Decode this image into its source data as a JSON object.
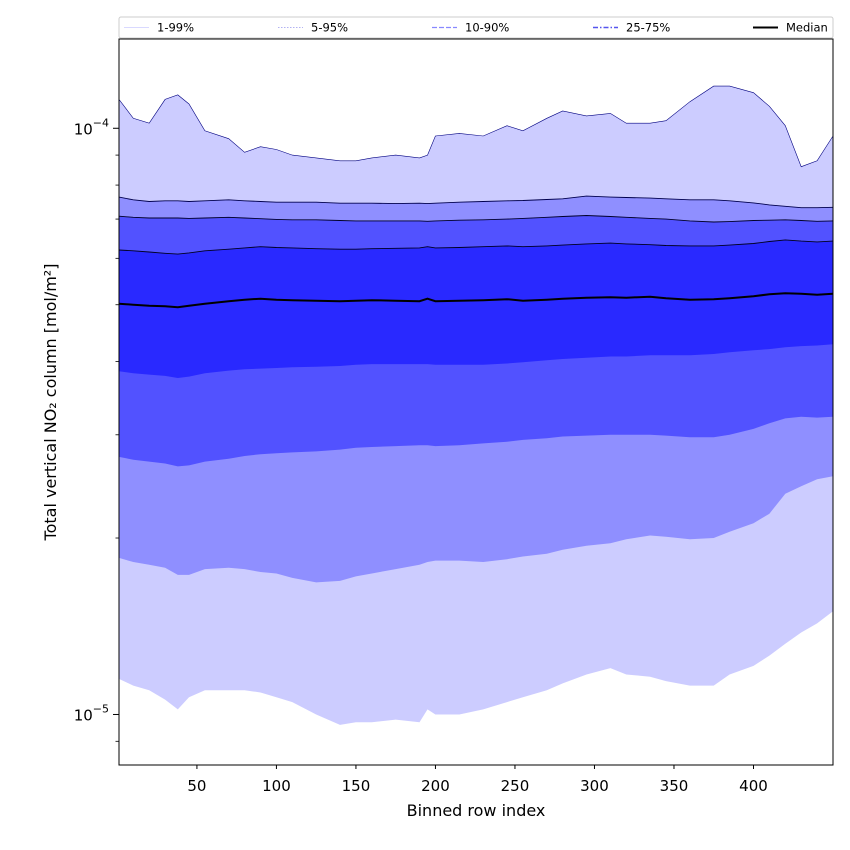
{
  "chart_data": {
    "type": "area",
    "xlabel": "Binned row index",
    "ylabel": "Total vertical NO₂ column [mol/m²]",
    "y_scale": "log",
    "xlim": [
      1,
      450
    ],
    "ylim": [
      8.2e-06,
      0.000142
    ],
    "x_ticks": [
      50,
      100,
      150,
      200,
      250,
      300,
      350,
      400
    ],
    "y_ticks": [
      {
        "value": 1e-05,
        "base": "10",
        "exponent": "−5"
      },
      {
        "value": 0.0001,
        "base": "10",
        "exponent": "−4"
      }
    ],
    "legend": {
      "placement": "top",
      "entries": [
        {
          "label": "1-99%",
          "color": "#ccccff",
          "style": "solid"
        },
        {
          "label": "5-95%",
          "color": "#9999ee",
          "style": "dotted"
        },
        {
          "label": "10-90%",
          "color": "#8888ff",
          "style": "dashed"
        },
        {
          "label": "25-75%",
          "color": "#5555ee",
          "style": "dashdot"
        },
        {
          "label": "Median",
          "color": "#000000",
          "style": "solid"
        }
      ]
    },
    "x": [
      1,
      10,
      20,
      30,
      38,
      45,
      55,
      70,
      80,
      90,
      100,
      110,
      125,
      140,
      150,
      160,
      175,
      190,
      195,
      200,
      215,
      230,
      245,
      255,
      270,
      280,
      295,
      310,
      320,
      335,
      345,
      360,
      375,
      385,
      400,
      410,
      420,
      430,
      440,
      450
    ],
    "bands": [
      {
        "name": "1-99%",
        "color": "#ccccff",
        "upper": [
          0.000112,
          0.000104,
          0.000102,
          0.000112,
          0.000114,
          0.00011,
          9.9e-05,
          9.6e-05,
          9.1e-05,
          9.3e-05,
          9.2e-05,
          9e-05,
          8.9e-05,
          8.8e-05,
          8.8e-05,
          8.9e-05,
          9e-05,
          8.9e-05,
          9e-05,
          9.7e-05,
          9.8e-05,
          9.7e-05,
          0.000101,
          9.9e-05,
          0.000104,
          0.000107,
          0.000105,
          0.000106,
          0.000102,
          0.000102,
          0.000103,
          0.000111,
          0.000118,
          0.000118,
          0.000115,
          0.000109,
          0.000101,
          8.6e-05,
          8.8e-05,
          9.7e-05
        ],
        "lower": [
          1.15e-05,
          1.12e-05,
          1.1e-05,
          1.06e-05,
          1.02e-05,
          1.07e-05,
          1.1e-05,
          1.1e-05,
          1.1e-05,
          1.09e-05,
          1.07e-05,
          1.05e-05,
          1e-05,
          9.6e-06,
          9.7e-06,
          9.7e-06,
          9.8e-06,
          9.7e-06,
          1.02e-05,
          1e-05,
          1e-05,
          1.02e-05,
          1.05e-05,
          1.07e-05,
          1.1e-05,
          1.13e-05,
          1.17e-05,
          1.2e-05,
          1.17e-05,
          1.16e-05,
          1.14e-05,
          1.12e-05,
          1.12e-05,
          1.17e-05,
          1.21e-05,
          1.26e-05,
          1.32e-05,
          1.38e-05,
          1.43e-05,
          1.5e-05
        ]
      },
      {
        "name": "5-95%",
        "color": "#8f8fff",
        "upper": [
          7.63e-05,
          7.55e-05,
          7.5e-05,
          7.52e-05,
          7.52e-05,
          7.5e-05,
          7.52e-05,
          7.55e-05,
          7.52e-05,
          7.5e-05,
          7.48e-05,
          7.48e-05,
          7.48e-05,
          7.45e-05,
          7.45e-05,
          7.45e-05,
          7.44e-05,
          7.45e-05,
          7.44e-05,
          7.45e-05,
          7.48e-05,
          7.5e-05,
          7.52e-05,
          7.53e-05,
          7.56e-05,
          7.58e-05,
          7.66e-05,
          7.63e-05,
          7.62e-05,
          7.6e-05,
          7.58e-05,
          7.55e-05,
          7.55e-05,
          7.52e-05,
          7.46e-05,
          7.4e-05,
          7.36e-05,
          7.32e-05,
          7.32e-05,
          7.33e-05
        ],
        "lower": [
          1.85e-05,
          1.82e-05,
          1.8e-05,
          1.78e-05,
          1.73e-05,
          1.73e-05,
          1.77e-05,
          1.78e-05,
          1.77e-05,
          1.75e-05,
          1.74e-05,
          1.71e-05,
          1.68e-05,
          1.69e-05,
          1.72e-05,
          1.74e-05,
          1.77e-05,
          1.8e-05,
          1.82e-05,
          1.83e-05,
          1.83e-05,
          1.82e-05,
          1.84e-05,
          1.86e-05,
          1.88e-05,
          1.91e-05,
          1.94e-05,
          1.96e-05,
          1.99e-05,
          2.02e-05,
          2.01e-05,
          1.99e-05,
          2e-05,
          2.05e-05,
          2.12e-05,
          2.2e-05,
          2.38e-05,
          2.45e-05,
          2.52e-05,
          2.55e-05
        ]
      },
      {
        "name": "10-90%",
        "color": "#5252ff",
        "upper": [
          7.08e-05,
          7.05e-05,
          7.03e-05,
          7.03e-05,
          7.03e-05,
          7.02e-05,
          7.03e-05,
          7.05e-05,
          7.03e-05,
          7.01e-05,
          6.99e-05,
          6.98e-05,
          6.98e-05,
          6.96e-05,
          6.95e-05,
          6.95e-05,
          6.95e-05,
          6.95e-05,
          6.94e-05,
          6.95e-05,
          6.97e-05,
          6.98e-05,
          7e-05,
          7.02e-05,
          7.05e-05,
          7.07e-05,
          7.1e-05,
          7.07e-05,
          7.05e-05,
          7.02e-05,
          7e-05,
          6.95e-05,
          6.92e-05,
          6.93e-05,
          6.96e-05,
          6.97e-05,
          6.98e-05,
          6.96e-05,
          6.94e-05,
          6.95e-05
        ],
        "lower": [
          2.75e-05,
          2.72e-05,
          2.7e-05,
          2.68e-05,
          2.65e-05,
          2.66e-05,
          2.7e-05,
          2.73e-05,
          2.76e-05,
          2.78e-05,
          2.79e-05,
          2.8e-05,
          2.81e-05,
          2.83e-05,
          2.85e-05,
          2.86e-05,
          2.87e-05,
          2.88e-05,
          2.88e-05,
          2.87e-05,
          2.88e-05,
          2.9e-05,
          2.92e-05,
          2.94e-05,
          2.96e-05,
          2.98e-05,
          2.99e-05,
          3e-05,
          3e-05,
          3e-05,
          2.99e-05,
          2.97e-05,
          2.97e-05,
          3e-05,
          3.07e-05,
          3.14e-05,
          3.2e-05,
          3.22e-05,
          3.21e-05,
          3.22e-05
        ]
      },
      {
        "name": "25-75%",
        "color": "#2929ff",
        "upper": [
          6.2e-05,
          6.18e-05,
          6.15e-05,
          6.12e-05,
          6.1e-05,
          6.13e-05,
          6.18e-05,
          6.22e-05,
          6.25e-05,
          6.28e-05,
          6.26e-05,
          6.25e-05,
          6.23e-05,
          6.22e-05,
          6.22e-05,
          6.23e-05,
          6.24e-05,
          6.25e-05,
          6.28e-05,
          6.25e-05,
          6.26e-05,
          6.28e-05,
          6.3e-05,
          6.28e-05,
          6.3e-05,
          6.32e-05,
          6.35e-05,
          6.37e-05,
          6.35e-05,
          6.33e-05,
          6.31e-05,
          6.3e-05,
          6.3e-05,
          6.32e-05,
          6.36e-05,
          6.41e-05,
          6.45e-05,
          6.42e-05,
          6.4e-05,
          6.42e-05
        ],
        "lower": [
          3.85e-05,
          3.82e-05,
          3.8e-05,
          3.78e-05,
          3.75e-05,
          3.77e-05,
          3.82e-05,
          3.86e-05,
          3.88e-05,
          3.89e-05,
          3.9e-05,
          3.91e-05,
          3.92e-05,
          3.93e-05,
          3.95e-05,
          3.96e-05,
          3.96e-05,
          3.96e-05,
          3.96e-05,
          3.95e-05,
          3.95e-05,
          3.95e-05,
          3.97e-05,
          3.99e-05,
          4.02e-05,
          4.04e-05,
          4.06e-05,
          4.08e-05,
          4.08e-05,
          4.1e-05,
          4.1e-05,
          4.1e-05,
          4.12e-05,
          4.15e-05,
          4.18e-05,
          4.2e-05,
          4.23e-05,
          4.25e-05,
          4.26e-05,
          4.28e-05
        ]
      }
    ],
    "median": [
      5.02e-05,
      5e-05,
      4.98e-05,
      4.97e-05,
      4.95e-05,
      4.98e-05,
      5.02e-05,
      5.07e-05,
      5.1e-05,
      5.12e-05,
      5.1e-05,
      5.09e-05,
      5.08e-05,
      5.07e-05,
      5.08e-05,
      5.09e-05,
      5.08e-05,
      5.07e-05,
      5.12e-05,
      5.07e-05,
      5.08e-05,
      5.09e-05,
      5.11e-05,
      5.08e-05,
      5.1e-05,
      5.12e-05,
      5.14e-05,
      5.15e-05,
      5.14e-05,
      5.16e-05,
      5.13e-05,
      5.1e-05,
      5.11e-05,
      5.13e-05,
      5.17e-05,
      5.21e-05,
      5.23e-05,
      5.22e-05,
      5.2e-05,
      5.22e-05
    ]
  }
}
